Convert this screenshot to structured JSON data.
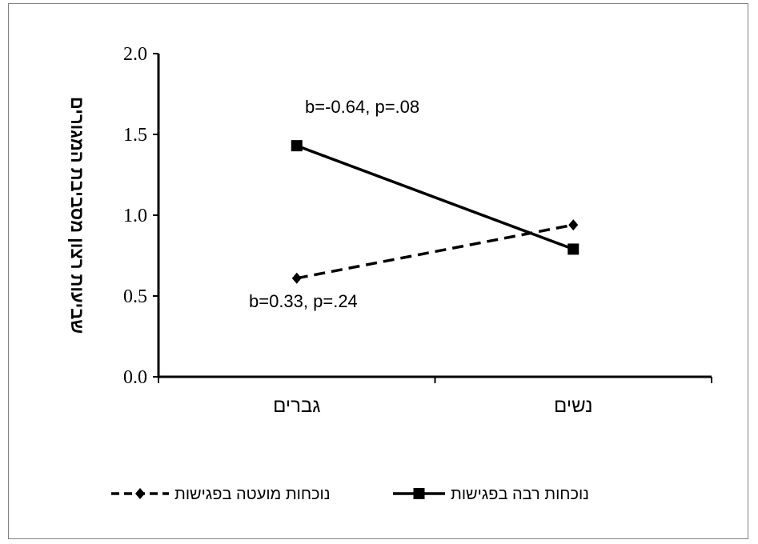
{
  "chart_data": {
    "type": "line",
    "ylabel": "שביעות רצון מסביבת המגורים",
    "xlabel": "",
    "ylim": [
      0.0,
      2.0
    ],
    "yticks": [
      "0.0",
      "0.5",
      "1.0",
      "1.5",
      "2.0"
    ],
    "categories": [
      "גברים",
      "נשים"
    ],
    "series": [
      {
        "name": "נוכחות רבה בפגישות",
        "values": [
          1.43,
          0.79
        ],
        "style": "solid",
        "marker": "square",
        "annotation": "b=-0.64, p=.08"
      },
      {
        "name": "נוכחות מועטה בפגישות",
        "values": [
          0.61,
          0.94
        ],
        "style": "dashed",
        "marker": "diamond",
        "annotation": "b=0.33, p=.24"
      }
    ],
    "legend_position": "bottom",
    "grid": false
  }
}
